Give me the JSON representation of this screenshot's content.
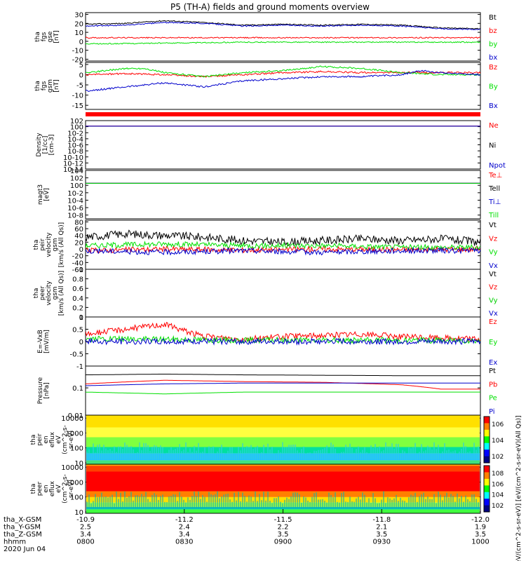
{
  "title": "P5 (TH-A) fields and ground moments overview",
  "colors": {
    "black": "#000000",
    "red": "#ff0000",
    "green": "#00e000",
    "blue": "#0000cc"
  },
  "chart_data": [
    {
      "type": "line",
      "ylabel": [
        "tha",
        "fgs",
        "gse",
        "[nT]"
      ],
      "yticks": [
        30,
        20,
        10,
        0,
        -10,
        -20
      ],
      "ylim": [
        -22,
        32
      ],
      "series": [
        {
          "name": "Bt",
          "color": "#000000",
          "x": [
            0,
            0.1,
            0.2,
            0.3,
            0.4,
            0.5,
            0.6,
            0.7,
            0.8,
            0.9,
            1.0
          ],
          "values": [
            19,
            20,
            23,
            21,
            18,
            19,
            18,
            19,
            18,
            15,
            14
          ]
        },
        {
          "name": "bz",
          "color": "#ff0000",
          "x": [
            0,
            0.2,
            0.4,
            0.6,
            0.8,
            1.0
          ],
          "values": [
            4,
            4,
            4,
            4,
            4,
            4
          ]
        },
        {
          "name": "by",
          "color": "#00e000",
          "x": [
            0,
            0.2,
            0.4,
            0.6,
            0.8,
            1.0
          ],
          "values": [
            -3,
            -2,
            -1,
            -1,
            -1,
            -1
          ]
        },
        {
          "name": "bx",
          "color": "#0000cc",
          "x": [
            0,
            0.1,
            0.2,
            0.3,
            0.4,
            0.5,
            0.6,
            0.7,
            0.8,
            0.9,
            1.0
          ],
          "values": [
            17,
            18,
            21,
            20,
            17,
            18,
            17,
            18,
            17,
            14,
            13
          ]
        }
      ],
      "legend": [
        "Bt",
        "bz",
        "by",
        "bx"
      ]
    },
    {
      "type": "line",
      "ylabel": [
        "tha",
        "fgs",
        "gsm",
        "[nT]"
      ],
      "yticks": [
        5,
        0,
        -5,
        -10,
        -15
      ],
      "ylim": [
        -17,
        6
      ],
      "series": [
        {
          "name": "Bz",
          "color": "#ff0000",
          "x": [
            0,
            0.1,
            0.2,
            0.3,
            0.4,
            0.5,
            0.6,
            0.7,
            0.8,
            0.9,
            1.0
          ],
          "values": [
            0,
            0.5,
            0,
            -1,
            0,
            1,
            1.5,
            1,
            1,
            1,
            1
          ]
        },
        {
          "name": "By",
          "color": "#00e000",
          "x": [
            0,
            0.1,
            0.15,
            0.2,
            0.3,
            0.4,
            0.5,
            0.6,
            0.7,
            0.8,
            0.9,
            1.0
          ],
          "values": [
            1,
            3,
            3,
            1,
            -1,
            1,
            2,
            4,
            3,
            1,
            0,
            0
          ]
        },
        {
          "name": "Bx",
          "color": "#0000cc",
          "x": [
            0,
            0.1,
            0.2,
            0.3,
            0.4,
            0.5,
            0.6,
            0.7,
            0.8,
            0.85,
            0.9,
            1.0
          ],
          "values": [
            -8,
            -6,
            -4,
            -6,
            -3,
            -2,
            -1,
            -1,
            0,
            2,
            1,
            0
          ]
        }
      ],
      "legend": [
        "Bz",
        "By",
        "Bx"
      ]
    },
    {
      "type": "line",
      "ylabel": [
        "Density",
        "[1/cc]",
        "[cm-3]"
      ],
      "yticks": [
        "10^2",
        "10^0",
        "10^-2",
        "10^-4",
        "10^-6",
        "10^-8",
        "10^-10",
        "10^-12",
        "10^-14"
      ],
      "ylim_log": [
        -14,
        2
      ],
      "series": [
        {
          "name": "Ne",
          "color": "#ff0000",
          "x": [
            0,
            1.0
          ],
          "values": [
            1.6,
            1.6
          ]
        },
        {
          "name": "Ni",
          "color": "#000000",
          "x": [
            0,
            1.0
          ],
          "values": [
            1.4,
            1.4
          ]
        },
        {
          "name": "Npot",
          "color": "#0000cc",
          "x": [
            0,
            1.0
          ],
          "values": [
            1.5,
            1.5
          ]
        }
      ],
      "legend": [
        "Ne",
        "Ni",
        "Npot"
      ]
    },
    {
      "type": "line",
      "ylabel": [
        "magt3",
        "[eV]"
      ],
      "yticks": [
        "10^4",
        "10^2",
        "10^0",
        "10^-2",
        "10^-4",
        "10^-6",
        "10^-8"
      ],
      "ylim_log": [
        -9,
        4
      ],
      "series": [
        {
          "name": "Te⊥",
          "color": "#ff0000",
          "x": [
            0,
            1.0
          ],
          "values": [
            3.5,
            3.5
          ]
        },
        {
          "name": "Tell",
          "color": "#000000",
          "x": [
            0,
            1.0
          ],
          "values": [
            3.3,
            3.3
          ]
        },
        {
          "name": "Ti⊥",
          "color": "#0000cc",
          "x": [
            0,
            1.0
          ],
          "values": [
            3.6,
            3.6
          ]
        },
        {
          "name": "Till",
          "color": "#00e000",
          "x": [
            0,
            1.0
          ],
          "values": [
            3.4,
            3.4
          ]
        }
      ],
      "legend": [
        "Te⊥",
        "Tell",
        "Ti⊥",
        "Till"
      ]
    },
    {
      "type": "line",
      "ylabel": [
        "tha",
        "peir",
        "velocity",
        "gsm",
        "[km/s (All Qs)]"
      ],
      "yticks": [
        80,
        60,
        40,
        20,
        0,
        -20,
        -40,
        -60
      ],
      "ylim": [
        -60,
        85
      ],
      "series": [
        {
          "name": "Vt",
          "color": "#000000",
          "x": [
            0,
            0.1,
            0.2,
            0.3,
            0.4,
            0.5,
            0.6,
            0.7,
            0.8,
            0.9,
            1.0
          ],
          "values": [
            35,
            45,
            40,
            35,
            25,
            20,
            25,
            30,
            25,
            30,
            20
          ]
        },
        {
          "name": "Vz",
          "color": "#ff0000",
          "x": [
            0,
            0.2,
            0.4,
            0.6,
            0.8,
            1.0
          ],
          "values": [
            -5,
            0,
            -3,
            0,
            -2,
            0
          ]
        },
        {
          "name": "Vy",
          "color": "#00e000",
          "x": [
            0,
            0.2,
            0.4,
            0.6,
            0.8,
            1.0
          ],
          "values": [
            10,
            15,
            10,
            10,
            5,
            5
          ]
        },
        {
          "name": "Vx",
          "color": "#0000cc",
          "x": [
            0,
            0.2,
            0.4,
            0.6,
            0.8,
            1.0
          ],
          "values": [
            -5,
            -10,
            -5,
            -10,
            -5,
            -5
          ]
        }
      ],
      "legend": [
        "Vt",
        "Vz",
        "Vy",
        "Vx"
      ]
    },
    {
      "type": "line",
      "ylabel": [
        "tha",
        "peer",
        "velocity",
        "gsm",
        "[km/s (All Qs)]"
      ],
      "yticks": [
        1.0,
        0.8,
        0.6,
        0.4,
        0.2,
        0.0
      ],
      "ylim": [
        0,
        1.0
      ],
      "series": [],
      "legend": [
        "Vt",
        "Vz",
        "Vy",
        "Vx"
      ]
    },
    {
      "type": "line",
      "ylabel": [
        "E=-VxB",
        "[mV/m]"
      ],
      "yticks": [
        1.0,
        0.5,
        0.0,
        -0.5,
        -1.0
      ],
      "ylim": [
        -1.0,
        1.0
      ],
      "series": [
        {
          "name": "Ez",
          "color": "#ff0000",
          "x": [
            0,
            0.1,
            0.2,
            0.3,
            0.4,
            0.5,
            0.6,
            0.7,
            0.8,
            0.9,
            1.0
          ],
          "values": [
            0.3,
            0.5,
            0.7,
            0.2,
            0.1,
            0.2,
            0.25,
            0.3,
            0.2,
            0.15,
            0.1
          ]
        },
        {
          "name": "Ey",
          "color": "#00e000",
          "x": [
            0,
            0.2,
            0.4,
            0.6,
            0.8,
            1.0
          ],
          "values": [
            0.1,
            0.1,
            0.05,
            0.05,
            0.05,
            0.05
          ]
        },
        {
          "name": "Ex",
          "color": "#0000cc",
          "x": [
            0,
            0.2,
            0.4,
            0.6,
            0.8,
            1.0
          ],
          "values": [
            0,
            0,
            0,
            0,
            0,
            0
          ]
        }
      ],
      "legend": [
        "Ez",
        "Ey",
        "Ex"
      ]
    },
    {
      "type": "line",
      "ylabel": [
        "Pressure",
        "[nPa]"
      ],
      "yticks": [
        0.1,
        0.01
      ],
      "ylim_log": [
        -2,
        -0.2
      ],
      "series": [
        {
          "name": "Pt",
          "color": "#000000",
          "x": [
            0,
            0.2,
            0.4,
            0.6,
            0.8,
            1.0
          ],
          "values": [
            0.3,
            0.32,
            0.3,
            0.29,
            0.28,
            0.28
          ]
        },
        {
          "name": "Pb",
          "color": "#ff0000",
          "x": [
            0,
            0.2,
            0.4,
            0.6,
            0.8,
            0.9,
            1.0
          ],
          "values": [
            0.14,
            0.19,
            0.17,
            0.16,
            0.13,
            0.09,
            0.09
          ]
        },
        {
          "name": "Pe",
          "color": "#00e000",
          "x": [
            0,
            0.2,
            0.4,
            0.6,
            0.8,
            1.0
          ],
          "values": [
            0.07,
            0.06,
            0.07,
            0.07,
            0.07,
            0.07
          ]
        },
        {
          "name": "Pi",
          "color": "#0000cc",
          "x": [
            0,
            0.2,
            0.4,
            0.6,
            0.8,
            1.0
          ],
          "values": [
            0.12,
            0.14,
            0.15,
            0.15,
            0.15,
            0.15
          ]
        }
      ],
      "legend": [
        "Pt",
        "Pb",
        "Pe",
        "Pi"
      ]
    },
    {
      "type": "heatmap",
      "ylabel": [
        "tha",
        "peir",
        "en",
        "eflux",
        "eV",
        "(cm^2-s-",
        "sr-eV)"
      ],
      "yticks": [
        10000,
        1000,
        100,
        10
      ],
      "colorbar_ticks": [
        "10^6",
        "10^4",
        "10^2"
      ]
    },
    {
      "type": "heatmap",
      "ylabel": [
        "tha",
        "peer",
        "en",
        "eflux",
        "eV",
        "(cm^2-s-",
        "sr-eV)"
      ],
      "yticks": [
        10000,
        1000,
        100,
        10
      ],
      "colorbar_ticks": [
        "10^8",
        "10^6",
        "10^4",
        "10^2"
      ]
    }
  ],
  "colorbar_label": "[eV/(cm^2-s-sr-eV)] [eV/(cm^2-s-sr-eV)(All Qs)]",
  "xaxis": {
    "rows": [
      {
        "label": "tha_X-GSM",
        "values": [
          "-10.9",
          "-11.2",
          "-11.5",
          "-11.8",
          "-12.0"
        ]
      },
      {
        "label": "tha_Y-GSM",
        "values": [
          "2.5",
          "2.4",
          "2.2",
          "2.1",
          "1.9"
        ]
      },
      {
        "label": "tha_Z-GSM",
        "values": [
          "3.4",
          "3.4",
          "3.5",
          "3.5",
          "3.5"
        ]
      },
      {
        "label": "hhmm",
        "values": [
          "0800",
          "0830",
          "0900",
          "0930",
          "1000"
        ]
      }
    ],
    "date": "2020 Jun 04"
  }
}
